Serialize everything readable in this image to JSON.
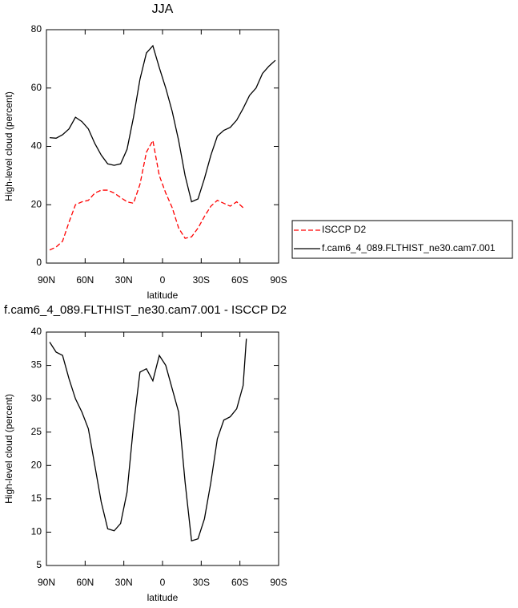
{
  "chart_data": [
    {
      "type": "line",
      "title": "JJA",
      "x_label": "latitude",
      "y_label": "High-level cloud (percent)",
      "x": [
        87.5,
        82.5,
        77.5,
        72.5,
        67.5,
        62.5,
        57.5,
        52.5,
        47.5,
        42.5,
        37.5,
        32.5,
        27.5,
        22.5,
        17.5,
        12.5,
        7.5,
        2.5,
        -2.5,
        -7.5,
        -12.5,
        -17.5,
        -22.5,
        -27.5,
        -32.5,
        -37.5,
        -42.5,
        -47.5,
        -52.5,
        -57.5,
        -62.5,
        -67.5,
        -72.5,
        -77.5,
        -82.5,
        -87.5
      ],
      "series": [
        {
          "name": "ISCCP D2",
          "color": "#ff0000",
          "dashed": true,
          "values": [
            4.5,
            5.5,
            7.5,
            14,
            20,
            21,
            21.5,
            24,
            25,
            25,
            24,
            22.5,
            21,
            20.5,
            27,
            38,
            42,
            30,
            24,
            19,
            12,
            8.5,
            9,
            12,
            16,
            19.5,
            21.5,
            20.5,
            19.5,
            21,
            19,
            null,
            null,
            null,
            null,
            null
          ]
        },
        {
          "name": "f.cam6_4_089.FLTHIST_ne30.cam7.001",
          "color": "#000000",
          "dashed": false,
          "values": [
            43,
            42.8,
            44,
            46,
            50,
            48.5,
            46,
            41,
            37,
            34,
            33.5,
            34,
            39,
            50,
            63,
            72,
            74.5,
            67,
            60,
            52,
            42,
            30,
            21,
            22,
            29,
            37,
            43.5,
            45.5,
            46.5,
            49,
            53,
            57.5,
            60,
            65,
            67.5,
            69.5
          ]
        }
      ],
      "xlim": [
        90,
        -90
      ],
      "xticks": [
        {
          "value": 90,
          "label": "90N"
        },
        {
          "value": 60,
          "label": "60N"
        },
        {
          "value": 30,
          "label": "30N"
        },
        0,
        {
          "value": -30,
          "label": "30S"
        },
        {
          "value": -60,
          "label": "60S"
        },
        {
          "value": -90,
          "label": "90S"
        }
      ],
      "ylim": [
        0,
        80
      ],
      "yticks": [
        0,
        20,
        40,
        60,
        80
      ],
      "legend": "outside right"
    },
    {
      "type": "line",
      "title": "f.cam6_4_089.FLTHIST_ne30.cam7.001 - ISCCP D2",
      "x_label": "latitude",
      "y_label": "High-level cloud (percent)",
      "x": [
        87.5,
        82.5,
        77.5,
        72.5,
        67.5,
        62.5,
        57.5,
        52.5,
        47.5,
        42.5,
        37.5,
        32.5,
        27.5,
        22.5,
        17.5,
        12.5,
        7.5,
        2.5,
        -2.5,
        -7.5,
        -12.5,
        -17.5,
        -22.5,
        -27.5,
        -32.5,
        -37.5,
        -42.5,
        -47.5,
        -52.5,
        -57.5,
        -62.5,
        -65
      ],
      "values": [
        38.5,
        37,
        36.5,
        33,
        30,
        28,
        25.5,
        20,
        14.5,
        10.5,
        10.2,
        11.3,
        16,
        26,
        34,
        34.5,
        32.7,
        36.5,
        35,
        31.5,
        28,
        17.5,
        8.7,
        9,
        12,
        17.5,
        24,
        26.8,
        27.3,
        28.5,
        32,
        39
      ],
      "color": "#000000",
      "xlim": [
        90,
        -90
      ],
      "xticks": [
        {
          "value": 90,
          "label": "90N"
        },
        {
          "value": 60,
          "label": "60N"
        },
        {
          "value": 30,
          "label": "30N"
        },
        0,
        {
          "value": -30,
          "label": "30S"
        },
        {
          "value": -60,
          "label": "60S"
        },
        {
          "value": -90,
          "label": "90S"
        }
      ],
      "ylim": [
        5,
        40
      ],
      "yticks": [
        5,
        10,
        15,
        20,
        25,
        30,
        35,
        40
      ]
    }
  ]
}
